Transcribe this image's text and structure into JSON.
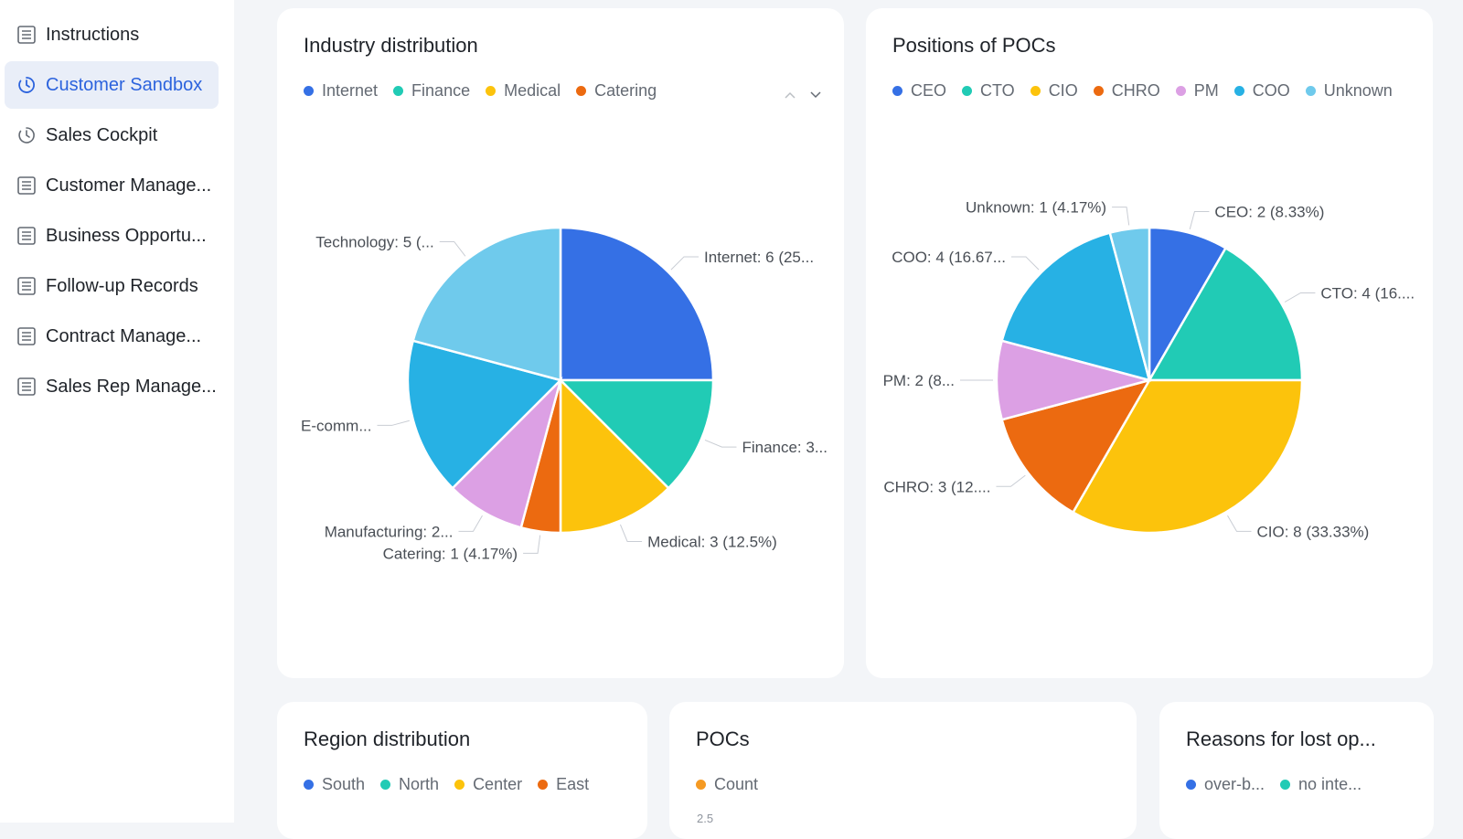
{
  "sidebar": {
    "items": [
      {
        "label": "Instructions",
        "icon": "table-icon",
        "active": false
      },
      {
        "label": "Customer Sandbox",
        "icon": "dashboard-icon",
        "active": true
      },
      {
        "label": "Sales Cockpit",
        "icon": "dashboard-icon",
        "active": false
      },
      {
        "label": "Customer Manage...",
        "icon": "table-icon",
        "active": false
      },
      {
        "label": "Business Opportu...",
        "icon": "table-icon",
        "active": false
      },
      {
        "label": "Follow-up Records",
        "icon": "table-icon",
        "active": false
      },
      {
        "label": "Contract Manage...",
        "icon": "table-icon",
        "active": false
      },
      {
        "label": "Sales Rep Manage...",
        "icon": "table-icon",
        "active": false
      }
    ]
  },
  "colors": {
    "accent": "#2c63dd",
    "blue": "#3570e5",
    "teal": "#21cbb5",
    "yellow": "#fcc30c",
    "orange": "#ec6a10",
    "lilac": "#dca0e4",
    "sky": "#27b1e4",
    "lightsky": "#6fcaec"
  },
  "cards": {
    "industry": {
      "title": "Industry distribution",
      "legend": [
        "Internet",
        "Finance",
        "Medical",
        "Catering"
      ]
    },
    "positions": {
      "title": "Positions of POCs",
      "legend": [
        "CEO",
        "CTO",
        "CIO",
        "CHRO",
        "PM",
        "COO",
        "Unknown"
      ]
    },
    "region": {
      "title": "Region distribution",
      "legend": [
        "South",
        "North",
        "Center",
        "East"
      ]
    },
    "pocs": {
      "title": "POCs",
      "legend": [
        "Count"
      ],
      "tick": "2.5"
    },
    "lost": {
      "title": "Reasons for lost op...",
      "legend": [
        "over-b...",
        "no inte..."
      ]
    }
  },
  "chart_data": [
    {
      "type": "pie",
      "title": "Industry distribution",
      "slices": [
        {
          "name": "Internet",
          "value": 6,
          "label": "Internet: 6 (25...",
          "color": "#3570e5"
        },
        {
          "name": "Finance",
          "value": 3,
          "label": "Finance: 3...",
          "color": "#21cbb5"
        },
        {
          "name": "Medical",
          "value": 3,
          "label": "Medical: 3 (12.5%)",
          "color": "#fcc30c"
        },
        {
          "name": "Catering",
          "value": 1,
          "label": "Catering: 1 (4.17%)",
          "color": "#ec6a10"
        },
        {
          "name": "Manufacturing",
          "value": 2,
          "label": "Manufacturing: 2...",
          "color": "#dca0e4"
        },
        {
          "name": "E-commerce",
          "value": 4,
          "label": "E-comm...",
          "color": "#27b1e4"
        },
        {
          "name": "Technology",
          "value": 5,
          "label": "Technology: 5 (...",
          "color": "#6fcaec"
        }
      ]
    },
    {
      "type": "pie",
      "title": "Positions of POCs",
      "slices": [
        {
          "name": "CEO",
          "value": 2,
          "label": "CEO: 2 (8.33%)",
          "color": "#3570e5"
        },
        {
          "name": "CTO",
          "value": 4,
          "label": "CTO: 4 (16....",
          "color": "#21cbb5"
        },
        {
          "name": "CIO",
          "value": 8,
          "label": "CIO: 8 (33.33%)",
          "color": "#fcc30c"
        },
        {
          "name": "CHRO",
          "value": 3,
          "label": "CHRO: 3 (12....",
          "color": "#ec6a10"
        },
        {
          "name": "PM",
          "value": 2,
          "label": "PM: 2 (8...",
          "color": "#dca0e4"
        },
        {
          "name": "COO",
          "value": 4,
          "label": "COO: 4 (16.67...",
          "color": "#27b1e4"
        },
        {
          "name": "Unknown",
          "value": 1,
          "label": "Unknown: 1 (4.17%)",
          "color": "#6fcaec"
        }
      ]
    }
  ]
}
